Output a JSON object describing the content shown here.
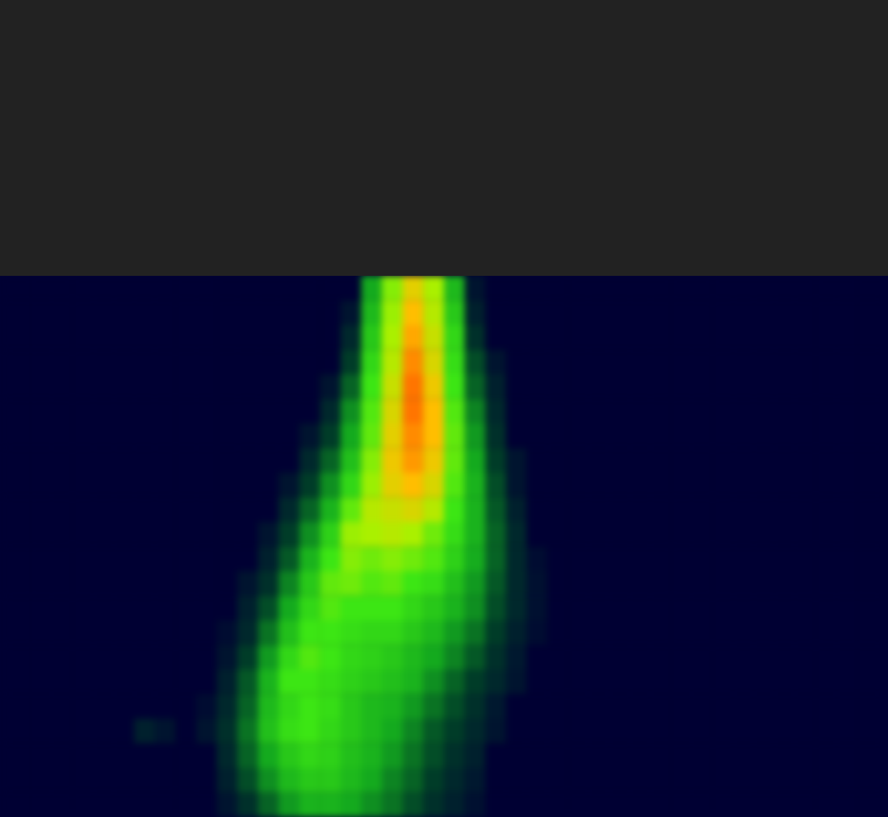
{
  "chart_data": {
    "type": "heatmap",
    "tick_labels": false,
    "grid": false,
    "zlim": [
      0,
      100
    ],
    "cells": [
      [
        0,
        0,
        0,
        0,
        0,
        0,
        0,
        0,
        0,
        0,
        0,
        0,
        0,
        0,
        0,
        0,
        0,
        0,
        35,
        65,
        80,
        70,
        40,
        5,
        0,
        0,
        0,
        0,
        0,
        0,
        0,
        0,
        0,
        0,
        0,
        0,
        0,
        0,
        0,
        0,
        0,
        0,
        0,
        0
      ],
      [
        0,
        0,
        0,
        0,
        0,
        0,
        0,
        0,
        0,
        0,
        0,
        0,
        0,
        0,
        0,
        0,
        0,
        5,
        40,
        68,
        85,
        72,
        45,
        8,
        0,
        0,
        0,
        0,
        0,
        0,
        0,
        0,
        0,
        0,
        0,
        0,
        0,
        0,
        0,
        0,
        0,
        0,
        0,
        0
      ],
      [
        0,
        0,
        0,
        0,
        0,
        0,
        0,
        0,
        0,
        0,
        0,
        0,
        0,
        0,
        0,
        0,
        0,
        10,
        45,
        70,
        88,
        75,
        50,
        12,
        0,
        0,
        0,
        0,
        0,
        0,
        0,
        0,
        0,
        0,
        0,
        0,
        0,
        0,
        0,
        0,
        0,
        0,
        0,
        0
      ],
      [
        0,
        0,
        0,
        0,
        0,
        0,
        0,
        0,
        0,
        0,
        0,
        0,
        0,
        0,
        0,
        0,
        0,
        15,
        50,
        72,
        92,
        78,
        52,
        18,
        5,
        0,
        0,
        0,
        0,
        0,
        0,
        0,
        0,
        0,
        0,
        0,
        0,
        0,
        0,
        0,
        0,
        0,
        0,
        0
      ],
      [
        0,
        0,
        0,
        0,
        0,
        0,
        0,
        0,
        0,
        0,
        0,
        0,
        0,
        0,
        0,
        0,
        5,
        22,
        55,
        75,
        95,
        82,
        55,
        22,
        8,
        0,
        0,
        0,
        0,
        0,
        0,
        0,
        0,
        0,
        0,
        0,
        0,
        0,
        0,
        0,
        0,
        0,
        0,
        0
      ],
      [
        0,
        0,
        0,
        0,
        0,
        0,
        0,
        0,
        0,
        0,
        0,
        0,
        0,
        0,
        0,
        0,
        10,
        30,
        58,
        78,
        95,
        85,
        58,
        28,
        10,
        0,
        0,
        0,
        0,
        0,
        0,
        0,
        0,
        0,
        0,
        0,
        0,
        0,
        0,
        0,
        0,
        0,
        0,
        0
      ],
      [
        0,
        0,
        0,
        0,
        0,
        0,
        0,
        0,
        0,
        0,
        0,
        0,
        0,
        0,
        0,
        5,
        15,
        35,
        60,
        80,
        92,
        85,
        60,
        32,
        12,
        0,
        0,
        0,
        0,
        0,
        0,
        0,
        0,
        0,
        0,
        0,
        0,
        0,
        0,
        0,
        0,
        0,
        0,
        0
      ],
      [
        0,
        0,
        0,
        0,
        0,
        0,
        0,
        0,
        0,
        0,
        0,
        0,
        0,
        0,
        0,
        10,
        22,
        42,
        65,
        82,
        90,
        82,
        60,
        35,
        15,
        5,
        0,
        0,
        0,
        0,
        0,
        0,
        0,
        0,
        0,
        0,
        0,
        0,
        0,
        0,
        0,
        0,
        0,
        0
      ],
      [
        0,
        0,
        0,
        0,
        0,
        0,
        0,
        0,
        0,
        0,
        0,
        0,
        0,
        0,
        5,
        15,
        30,
        50,
        68,
        80,
        85,
        78,
        58,
        38,
        18,
        5,
        0,
        0,
        0,
        0,
        0,
        0,
        0,
        0,
        0,
        0,
        0,
        0,
        0,
        0,
        0,
        0,
        0,
        0
      ],
      [
        0,
        0,
        0,
        0,
        0,
        0,
        0,
        0,
        0,
        0,
        0,
        0,
        0,
        0,
        10,
        22,
        38,
        60,
        72,
        75,
        78,
        72,
        55,
        38,
        20,
        8,
        0,
        0,
        0,
        0,
        0,
        0,
        0,
        0,
        0,
        0,
        0,
        0,
        0,
        0,
        0,
        0,
        0,
        0
      ],
      [
        0,
        0,
        0,
        0,
        0,
        0,
        0,
        0,
        0,
        0,
        0,
        0,
        0,
        5,
        15,
        30,
        48,
        68,
        70,
        72,
        70,
        62,
        52,
        38,
        22,
        10,
        0,
        0,
        0,
        0,
        0,
        0,
        0,
        0,
        0,
        0,
        0,
        0,
        0,
        0,
        0,
        0,
        0,
        0
      ],
      [
        0,
        0,
        0,
        0,
        0,
        0,
        0,
        0,
        0,
        0,
        0,
        0,
        0,
        8,
        20,
        38,
        55,
        65,
        62,
        65,
        62,
        58,
        48,
        36,
        22,
        10,
        3,
        0,
        0,
        0,
        0,
        0,
        0,
        0,
        0,
        0,
        0,
        0,
        0,
        0,
        0,
        0,
        0,
        0
      ],
      [
        0,
        0,
        0,
        0,
        0,
        0,
        0,
        0,
        0,
        0,
        0,
        0,
        5,
        12,
        28,
        45,
        60,
        62,
        58,
        60,
        55,
        52,
        42,
        32,
        20,
        10,
        4,
        0,
        0,
        0,
        0,
        0,
        0,
        0,
        0,
        0,
        0,
        0,
        0,
        0,
        0,
        0,
        0,
        0
      ],
      [
        0,
        0,
        0,
        0,
        0,
        0,
        0,
        0,
        0,
        0,
        0,
        0,
        8,
        18,
        35,
        50,
        58,
        55,
        55,
        55,
        50,
        45,
        38,
        30,
        18,
        10,
        4,
        0,
        0,
        0,
        0,
        0,
        0,
        0,
        0,
        0,
        0,
        0,
        0,
        0,
        0,
        0,
        0,
        0
      ],
      [
        0,
        0,
        0,
        0,
        0,
        0,
        0,
        0,
        0,
        0,
        0,
        3,
        10,
        25,
        42,
        55,
        55,
        52,
        50,
        50,
        45,
        40,
        32,
        25,
        15,
        8,
        3,
        0,
        0,
        0,
        0,
        0,
        0,
        0,
        0,
        0,
        0,
        0,
        0,
        0,
        0,
        0,
        0,
        0
      ],
      [
        0,
        0,
        0,
        0,
        0,
        0,
        0,
        0,
        0,
        0,
        0,
        5,
        15,
        32,
        50,
        58,
        55,
        50,
        48,
        45,
        40,
        35,
        28,
        20,
        12,
        6,
        0,
        0,
        0,
        0,
        0,
        0,
        0,
        0,
        0,
        0,
        0,
        0,
        0,
        0,
        0,
        0,
        0,
        0
      ],
      [
        0,
        0,
        0,
        0,
        0,
        0,
        0,
        0,
        0,
        0,
        0,
        8,
        20,
        38,
        55,
        55,
        52,
        48,
        45,
        42,
        38,
        30,
        22,
        15,
        10,
        5,
        0,
        0,
        0,
        0,
        0,
        0,
        0,
        0,
        0,
        0,
        0,
        0,
        0,
        0,
        0,
        0,
        0,
        0
      ],
      [
        0,
        0,
        0,
        0,
        0,
        0,
        0,
        0,
        0,
        0,
        3,
        10,
        22,
        40,
        50,
        55,
        52,
        45,
        40,
        38,
        32,
        25,
        18,
        12,
        6,
        0,
        0,
        0,
        0,
        0,
        0,
        0,
        0,
        0,
        0,
        0,
        0,
        0,
        0,
        0,
        0,
        0,
        0,
        0
      ],
      [
        0,
        0,
        0,
        0,
        0,
        0,
        0,
        8,
        5,
        0,
        5,
        12,
        25,
        42,
        52,
        55,
        50,
        45,
        40,
        35,
        28,
        20,
        15,
        10,
        5,
        0,
        0,
        0,
        0,
        0,
        0,
        0,
        0,
        0,
        0,
        0,
        0,
        0,
        0,
        0,
        0,
        0,
        0,
        0
      ],
      [
        0,
        0,
        0,
        0,
        0,
        0,
        0,
        0,
        0,
        0,
        0,
        10,
        22,
        35,
        45,
        50,
        48,
        42,
        38,
        32,
        25,
        18,
        12,
        8,
        0,
        0,
        0,
        0,
        0,
        0,
        0,
        0,
        0,
        0,
        0,
        0,
        0,
        0,
        0,
        0,
        0,
        0,
        0,
        0
      ],
      [
        0,
        0,
        0,
        0,
        0,
        0,
        0,
        0,
        0,
        0,
        0,
        8,
        18,
        30,
        40,
        45,
        45,
        40,
        35,
        28,
        22,
        15,
        10,
        6,
        0,
        0,
        0,
        0,
        0,
        0,
        0,
        0,
        0,
        0,
        0,
        0,
        0,
        0,
        0,
        0,
        0,
        0,
        0,
        0
      ],
      [
        0,
        0,
        0,
        0,
        0,
        0,
        0,
        0,
        0,
        0,
        0,
        5,
        12,
        22,
        32,
        38,
        38,
        35,
        30,
        25,
        18,
        12,
        8,
        4,
        0,
        0,
        0,
        0,
        0,
        0,
        0,
        0,
        0,
        0,
        0,
        0,
        0,
        0,
        0,
        0,
        0,
        0,
        0,
        0
      ]
    ]
  }
}
